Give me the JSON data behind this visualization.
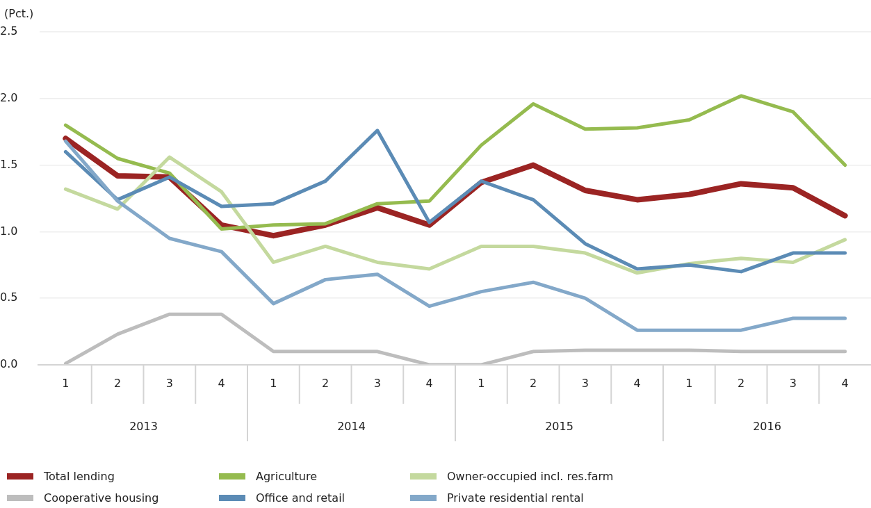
{
  "chart_data": {
    "type": "line",
    "ylabel": "(Pct.)",
    "categories": [
      "1",
      "2",
      "3",
      "4",
      "1",
      "2",
      "3",
      "4",
      "1",
      "2",
      "3",
      "4",
      "1",
      "2",
      "3",
      "4"
    ],
    "annotations": [
      "2013",
      "2014",
      "2015",
      "2016"
    ],
    "series": [
      {
        "name": "Total lending",
        "color": "#9b2423",
        "values": [
          1.7,
          1.42,
          1.41,
          1.05,
          0.97,
          1.05,
          1.18,
          1.05,
          1.37,
          1.5,
          1.31,
          1.24,
          1.28,
          1.36,
          1.33,
          1.12
        ]
      },
      {
        "name": "Agriculture",
        "color": "#95bb4f",
        "values": [
          1.8,
          1.55,
          1.44,
          1.02,
          1.05,
          1.06,
          1.21,
          1.23,
          1.65,
          1.96,
          1.77,
          1.78,
          1.84,
          2.02,
          1.9,
          1.5
        ]
      },
      {
        "name": "Owner-occupied incl. res.farm",
        "color": "#c4d99e",
        "values": [
          1.32,
          1.17,
          1.56,
          1.3,
          0.77,
          0.89,
          0.77,
          0.72,
          0.89,
          0.89,
          0.84,
          0.69,
          0.76,
          0.8,
          0.77,
          0.94
        ]
      },
      {
        "name": "Cooperative housing",
        "color": "#bdbdbd",
        "values": [
          0.01,
          0.23,
          0.38,
          0.38,
          0.1,
          0.1,
          0.1,
          0.0,
          0.0,
          0.1,
          0.11,
          0.11,
          0.11,
          0.1,
          0.1,
          0.1
        ]
      },
      {
        "name": "Office and retail",
        "color": "#5b8bb5",
        "values": [
          1.6,
          1.24,
          1.41,
          1.19,
          1.21,
          1.38,
          1.76,
          1.07,
          1.38,
          1.24,
          0.91,
          0.72,
          0.75,
          0.7,
          0.84,
          0.84
        ]
      },
      {
        "name": "Private residential rental",
        "color": "#83a8c9",
        "values": [
          1.68,
          1.23,
          0.95,
          0.85,
          0.46,
          0.64,
          0.68,
          0.44,
          0.55,
          0.62,
          0.5,
          0.26,
          0.26,
          0.26,
          0.35,
          0.35
        ]
      }
    ],
    "ylim": [
      0,
      2.5
    ],
    "yticks": [
      {
        "value": 0,
        "label": "0.0"
      },
      {
        "value": 0.5,
        "label": "0.5"
      },
      {
        "value": 1,
        "label": "1.0"
      },
      {
        "value": 1.5,
        "label": "1.5"
      },
      {
        "value": 2,
        "label": "2.0"
      },
      {
        "value": 2.5,
        "label": "2.5"
      }
    ],
    "grid": "y",
    "legend": "bottom",
    "marker": "none",
    "line_style": "solid"
  }
}
